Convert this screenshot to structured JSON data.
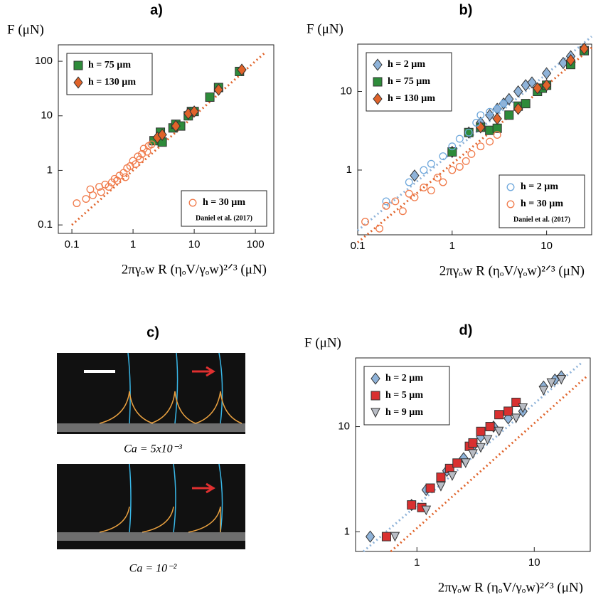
{
  "chart_data": [
    {
      "type": "scatter",
      "title": "a)",
      "ylabel": "F (μN)",
      "xlabel": "2πγₒw R (ηₒV/γₒw)²ᐟ³ (μN)",
      "log": true,
      "xlim": [
        0.06,
        200
      ],
      "ylim": [
        0.07,
        200
      ],
      "xticks": [
        0.1,
        1,
        10,
        100
      ],
      "yticks": [
        0.1,
        1,
        10,
        100
      ],
      "reference": "Daniel et al. (2017)",
      "series": [
        {
          "name": "h = 75 µm",
          "marker": "square",
          "color": "#2e8b3a",
          "legend": "upper left",
          "x": [
            2.2,
            2.8,
            3,
            4.5,
            5,
            6,
            8,
            9,
            10,
            18,
            25,
            55
          ],
          "values": [
            3.5,
            5,
            3.3,
            6,
            7,
            6.5,
            10,
            12,
            12,
            22,
            33,
            65
          ]
        },
        {
          "name": "h = 130 µm",
          "marker": "diamond",
          "color": "#e0632a",
          "legend": "upper left",
          "x": [
            2.5,
            3,
            5,
            8,
            10,
            25,
            60
          ],
          "values": [
            4,
            4.5,
            6.5,
            11,
            12,
            30,
            70
          ]
        },
        {
          "name": "h = 30 µm",
          "marker": "circle",
          "color": "#f07a4a",
          "legend": "lower right",
          "x": [
            0.12,
            0.17,
            0.2,
            0.22,
            0.28,
            0.3,
            0.35,
            0.4,
            0.45,
            0.5,
            0.55,
            0.6,
            0.7,
            0.75,
            0.8,
            0.9,
            1,
            1.1,
            1.2,
            1.3,
            1.4,
            1.5,
            1.7,
            2,
            1.8
          ],
          "values": [
            0.25,
            0.3,
            0.45,
            0.35,
            0.5,
            0.4,
            0.55,
            0.5,
            0.6,
            0.7,
            0.65,
            0.8,
            0.9,
            0.75,
            1.1,
            1.2,
            1.5,
            1.3,
            1.8,
            1.6,
            2,
            2.5,
            2.2,
            3,
            2.8
          ]
        }
      ],
      "lines": [
        {
          "color": "#e0632a",
          "x": [
            0.1,
            150
          ],
          "y": [
            0.1,
            150
          ]
        }
      ]
    },
    {
      "type": "scatter",
      "title": "b)",
      "ylabel": "F (μN)",
      "xlabel": "2πγₒw R (ηₒV/γₒw)²ᐟ³ (μN)",
      "log": true,
      "xlim": [
        0.1,
        30
      ],
      "ylim": [
        0.15,
        40
      ],
      "xticks": [
        0.1,
        1,
        10
      ],
      "yticks": [
        1,
        10
      ],
      "reference": "Daniel et al. (2017)",
      "series": [
        {
          "name": "h = 2 µm",
          "marker": "diamond",
          "color": "#8fb3d9",
          "legend": "upper left",
          "x": [
            0.4,
            1,
            1.5,
            2,
            2.5,
            3,
            3.5,
            4,
            5,
            6,
            7,
            10,
            15,
            18
          ],
          "values": [
            0.85,
            1.7,
            3,
            4,
            5,
            6,
            7,
            8,
            10,
            12,
            13,
            17,
            23,
            28
          ]
        },
        {
          "name": "h = 75 µm",
          "marker": "square",
          "color": "#2e8b3a",
          "legend": "upper left",
          "x": [
            1,
            1.5,
            2,
            2.5,
            3,
            4,
            5,
            6,
            8,
            9,
            10,
            18,
            25
          ],
          "values": [
            1.7,
            3,
            3.5,
            3.2,
            3.4,
            5,
            6.5,
            7,
            10,
            11,
            12,
            22,
            33
          ]
        },
        {
          "name": "h = 130 µm",
          "marker": "diamond",
          "color": "#e0632a",
          "legend": "upper left",
          "x": [
            2,
            3,
            5,
            8,
            10,
            18,
            25
          ],
          "values": [
            3.5,
            4.5,
            6,
            11,
            12,
            25,
            35
          ]
        },
        {
          "name": "h = 2 µm",
          "marker": "circle",
          "color": "#6fa8dc",
          "legend": "lower right",
          "x": [
            0.2,
            0.35,
            0.5,
            0.6,
            0.8,
            1,
            1.2,
            1.5,
            1.8,
            2,
            2.5,
            3,
            3.5
          ],
          "values": [
            0.4,
            0.7,
            1,
            1.2,
            1.5,
            2,
            2.5,
            3,
            4,
            5,
            5.5,
            6,
            7
          ]
        },
        {
          "name": "h = 30 µm",
          "marker": "circle",
          "color": "#f07a4a",
          "legend": "lower right",
          "x": [
            0.12,
            0.17,
            0.2,
            0.25,
            0.3,
            0.35,
            0.4,
            0.5,
            0.6,
            0.7,
            0.8,
            1,
            1.2,
            1.4,
            1.6,
            2,
            2.5,
            3
          ],
          "values": [
            0.22,
            0.18,
            0.35,
            0.4,
            0.3,
            0.5,
            0.45,
            0.6,
            0.55,
            0.8,
            0.7,
            1,
            1.1,
            1.3,
            1.6,
            2,
            2.3,
            2.8
          ]
        }
      ],
      "lines": [
        {
          "color": "#8fb3d9",
          "x": [
            0.1,
            30
          ],
          "y": [
            0.17,
            50
          ]
        },
        {
          "color": "#e0632a",
          "x": [
            0.1,
            30
          ],
          "y": [
            0.12,
            36
          ]
        }
      ]
    },
    {
      "type": "scatter",
      "title": "d)",
      "ylabel": "F (μN)",
      "xlabel": "2πγₒw R (ηₒV/γₒw)²ᐟ³ (μN)",
      "log": true,
      "xlim": [
        0.3,
        30
      ],
      "ylim": [
        0.65,
        45
      ],
      "xticks": [
        1,
        10
      ],
      "yticks": [
        1,
        10
      ],
      "series": [
        {
          "name": "h = 2 µm",
          "marker": "diamond",
          "color": "#8fb3d9",
          "legend": "upper left",
          "x": [
            0.4,
            0.9,
            1.2,
            1.8,
            2.5,
            3,
            3.5,
            4.5,
            6,
            8,
            12,
            15,
            17
          ],
          "values": [
            0.9,
            1.8,
            2.5,
            3.8,
            5,
            6.5,
            8,
            10,
            12,
            14,
            24,
            28,
            30
          ]
        },
        {
          "name": "h = 5 µm",
          "marker": "square",
          "color": "#d93030",
          "legend": "upper left",
          "x": [
            0.55,
            0.9,
            1.1,
            1.3,
            1.6,
            1.9,
            2.2,
            2.8,
            3,
            3.5,
            4.2,
            5,
            6,
            7
          ],
          "values": [
            0.9,
            1.8,
            1.7,
            2.6,
            3.3,
            4,
            4.5,
            6.5,
            7,
            9,
            10,
            13,
            14,
            17
          ]
        },
        {
          "name": "h = 9 µm",
          "marker": "triangle",
          "color": "#b8bcc4",
          "legend": "upper left",
          "x": [
            0.65,
            1.2,
            1.6,
            2,
            2.6,
            3,
            3.5,
            4,
            5,
            7,
            8,
            12,
            14,
            17
          ],
          "values": [
            0.9,
            1.6,
            2.7,
            3.4,
            4.5,
            5.5,
            6.3,
            7.5,
            9,
            12,
            15,
            22,
            26,
            28
          ]
        }
      ],
      "lines": [
        {
          "color": "#8fb3d9",
          "x": [
            0.35,
            25
          ],
          "y": [
            0.65,
            40
          ]
        },
        {
          "color": "#e0632a",
          "x": [
            0.6,
            28
          ],
          "y": [
            0.65,
            30
          ]
        }
      ]
    }
  ],
  "panel_c": {
    "title": "c)",
    "captions": [
      "Ca = 5x10⁻³",
      "Ca = 10⁻²"
    ]
  }
}
